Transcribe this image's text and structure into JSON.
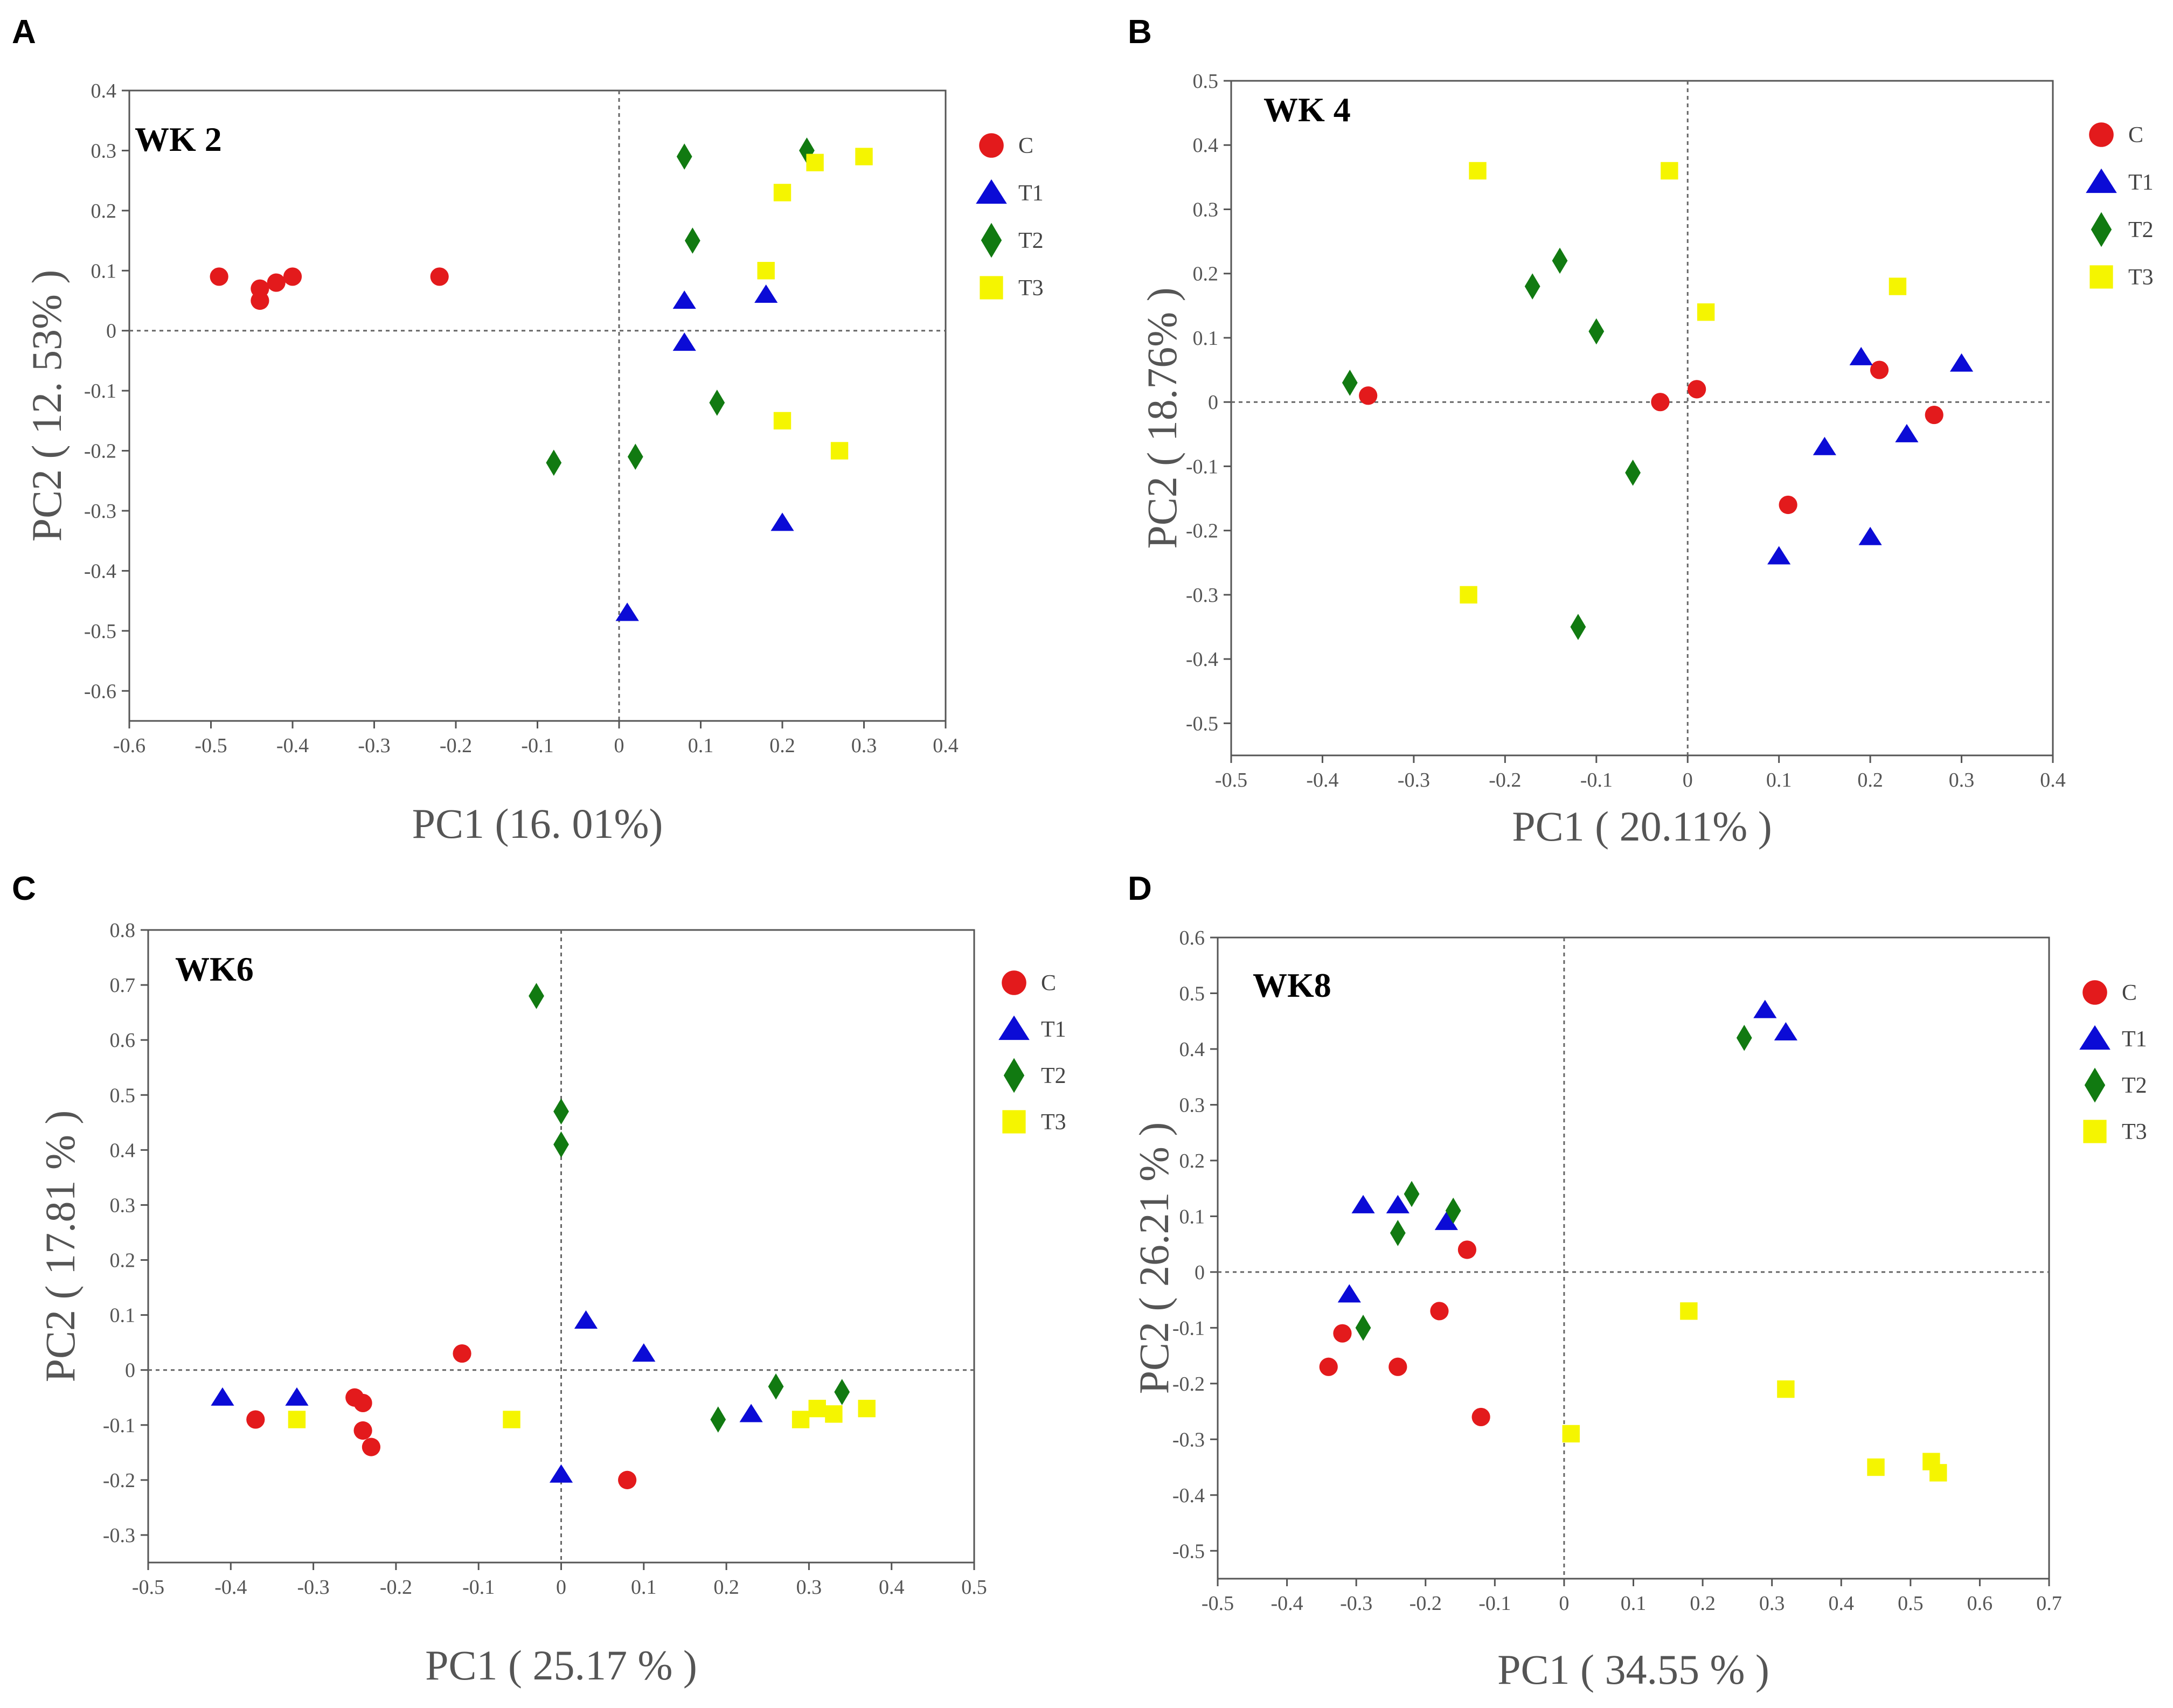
{
  "colors": {
    "C": "#e31a1c",
    "T1": "#0b0bd6",
    "T2": "#117a11",
    "T3": "#f5f500",
    "axis": "#555555",
    "refline": "#666666"
  },
  "chart_data": [
    {
      "type": "scatter",
      "panel": "A",
      "title": "WK 2",
      "xlabel": "PC1 (16. 01%)",
      "ylabel": "PC2 ( 12. 53% )",
      "xlim": [
        -0.6,
        0.4
      ],
      "ylim": [
        -0.65,
        0.4
      ],
      "xticks": [
        -0.6,
        -0.5,
        -0.4,
        -0.3,
        -0.2,
        -0.1,
        0,
        0.1,
        0.2,
        0.3,
        0.4
      ],
      "yticks": [
        -0.6,
        -0.5,
        -0.4,
        -0.3,
        -0.2,
        -0.1,
        0,
        0.1,
        0.2,
        0.3,
        0.4
      ],
      "xtick_labels": [
        "-0.6",
        "-0.5",
        "-0.4",
        "-0.3",
        "-0.2",
        "-0.1",
        "0",
        "0.1",
        "0.2",
        "0.3",
        "0.4"
      ],
      "ytick_labels": [
        "-0.6",
        "-0.5",
        "-0.4",
        "-0.3",
        "-0.2",
        "-0.1",
        "0",
        "0.1",
        "0.2",
        "0.3",
        "0.4"
      ],
      "series": [
        {
          "name": "C",
          "marker": "circle",
          "points": [
            [
              -0.49,
              0.09
            ],
            [
              -0.44,
              0.07
            ],
            [
              -0.44,
              0.05
            ],
            [
              -0.42,
              0.08
            ],
            [
              -0.4,
              0.09
            ],
            [
              -0.22,
              0.09
            ]
          ]
        },
        {
          "name": "T1",
          "marker": "triangle",
          "points": [
            [
              0.08,
              0.05
            ],
            [
              0.18,
              0.06
            ],
            [
              0.08,
              -0.02
            ],
            [
              0.2,
              -0.32
            ],
            [
              0.01,
              -0.47
            ],
            [
              0.01,
              -0.47
            ]
          ]
        },
        {
          "name": "T2",
          "marker": "diamond",
          "points": [
            [
              0.08,
              0.29
            ],
            [
              0.23,
              0.3
            ],
            [
              0.09,
              0.15
            ],
            [
              0.12,
              -0.12
            ],
            [
              -0.08,
              -0.22
            ],
            [
              0.02,
              -0.21
            ]
          ]
        },
        {
          "name": "T3",
          "marker": "square",
          "points": [
            [
              0.3,
              0.29
            ],
            [
              0.24,
              0.28
            ],
            [
              0.2,
              0.23
            ],
            [
              0.18,
              0.1
            ],
            [
              0.2,
              -0.15
            ],
            [
              0.27,
              -0.2
            ]
          ]
        }
      ]
    },
    {
      "type": "scatter",
      "panel": "B",
      "title": "WK 4",
      "xlabel": "PC1 ( 20.11% )",
      "ylabel": "PC2 ( 18.76% )",
      "xlim": [
        -0.5,
        0.4
      ],
      "ylim": [
        -0.55,
        0.5
      ],
      "xticks": [
        -0.5,
        -0.4,
        -0.3,
        -0.2,
        -0.1,
        0,
        0.1,
        0.2,
        0.3,
        0.4
      ],
      "yticks": [
        -0.5,
        -0.4,
        -0.3,
        -0.2,
        -0.1,
        0,
        0.1,
        0.2,
        0.3,
        0.4,
        0.5
      ],
      "xtick_labels": [
        "-0.5",
        "-0.4",
        "-0.3",
        "-0.2",
        "-0.1",
        "0",
        "0.1",
        "0.2",
        "0.3",
        "0.4"
      ],
      "ytick_labels": [
        "-0.5",
        "-0.4",
        "-0.3",
        "-0.2",
        "-0.1",
        "0",
        "0.1",
        "0.2",
        "0.3",
        "0.4",
        "0.5"
      ],
      "series": [
        {
          "name": "C",
          "marker": "circle",
          "points": [
            [
              -0.35,
              0.01
            ],
            [
              -0.03,
              0.0
            ],
            [
              0.01,
              0.02
            ],
            [
              0.21,
              0.05
            ],
            [
              0.27,
              -0.02
            ],
            [
              0.11,
              -0.16
            ]
          ]
        },
        {
          "name": "T1",
          "marker": "triangle",
          "points": [
            [
              0.19,
              0.07
            ],
            [
              0.3,
              0.06
            ],
            [
              0.24,
              -0.05
            ],
            [
              0.15,
              -0.07
            ],
            [
              0.2,
              -0.21
            ],
            [
              0.1,
              -0.24
            ]
          ]
        },
        {
          "name": "T2",
          "marker": "diamond",
          "points": [
            [
              -0.37,
              0.03
            ],
            [
              -0.17,
              0.18
            ],
            [
              -0.14,
              0.22
            ],
            [
              -0.1,
              0.11
            ],
            [
              -0.06,
              -0.11
            ],
            [
              -0.12,
              -0.35
            ]
          ]
        },
        {
          "name": "T3",
          "marker": "square",
          "points": [
            [
              -0.23,
              0.36
            ],
            [
              -0.02,
              0.36
            ],
            [
              0.02,
              0.14
            ],
            [
              0.23,
              0.18
            ],
            [
              -0.24,
              -0.3
            ]
          ]
        }
      ]
    },
    {
      "type": "scatter",
      "panel": "C",
      "title": "WK6",
      "xlabel": "PC1 ( 25.17 % )",
      "ylabel": "PC2 ( 17.81 % )",
      "xlim": [
        -0.5,
        0.5
      ],
      "ylim": [
        -0.35,
        0.8
      ],
      "xticks": [
        -0.5,
        -0.4,
        -0.3,
        -0.2,
        -0.1,
        0,
        0.1,
        0.2,
        0.3,
        0.4,
        0.5
      ],
      "yticks": [
        -0.3,
        -0.2,
        -0.1,
        0,
        0.1,
        0.2,
        0.3,
        0.4,
        0.5,
        0.6,
        0.7,
        0.8
      ],
      "xtick_labels": [
        "-0.5",
        "-0.4",
        "-0.3",
        "-0.2",
        "-0.1",
        "0",
        "0.1",
        "0.2",
        "0.3",
        "0.4",
        "0.5"
      ],
      "ytick_labels": [
        "-0.3",
        "-0.2",
        "-0.1",
        "0",
        "0.1",
        "0.2",
        "0.3",
        "0.4",
        "0.5",
        "0.6",
        "0.7",
        "0.8"
      ],
      "series": [
        {
          "name": "C",
          "marker": "circle",
          "points": [
            [
              -0.37,
              -0.09
            ],
            [
              -0.25,
              -0.05
            ],
            [
              -0.24,
              -0.06
            ],
            [
              -0.24,
              -0.11
            ],
            [
              -0.23,
              -0.14
            ],
            [
              -0.12,
              0.03
            ],
            [
              0.08,
              -0.2
            ]
          ]
        },
        {
          "name": "T1",
          "marker": "triangle",
          "points": [
            [
              -0.41,
              -0.05
            ],
            [
              -0.32,
              -0.05
            ],
            [
              0.03,
              0.09
            ],
            [
              0.1,
              0.03
            ],
            [
              0.0,
              -0.19
            ],
            [
              0.23,
              -0.08
            ]
          ]
        },
        {
          "name": "T2",
          "marker": "diamond",
          "points": [
            [
              -0.03,
              0.68
            ],
            [
              0.0,
              0.47
            ],
            [
              0.0,
              0.41
            ],
            [
              0.19,
              -0.09
            ],
            [
              0.26,
              -0.03
            ],
            [
              0.34,
              -0.04
            ]
          ]
        },
        {
          "name": "T3",
          "marker": "square",
          "points": [
            [
              -0.32,
              -0.09
            ],
            [
              -0.06,
              -0.09
            ],
            [
              0.29,
              -0.09
            ],
            [
              0.31,
              -0.07
            ],
            [
              0.33,
              -0.08
            ],
            [
              0.37,
              -0.07
            ]
          ]
        }
      ]
    },
    {
      "type": "scatter",
      "panel": "D",
      "title": "WK8",
      "xlabel": "PC1 ( 34.55 % )",
      "ylabel": "PC2 ( 26.21 % )",
      "xlim": [
        -0.5,
        0.7
      ],
      "ylim": [
        -0.55,
        0.6
      ],
      "xticks": [
        -0.5,
        -0.4,
        -0.3,
        -0.2,
        -0.1,
        0,
        0.1,
        0.2,
        0.3,
        0.4,
        0.5,
        0.6,
        0.7
      ],
      "yticks": [
        -0.5,
        -0.4,
        -0.3,
        -0.2,
        -0.1,
        0,
        0.1,
        0.2,
        0.3,
        0.4,
        0.5,
        0.6
      ],
      "xtick_labels": [
        "-0.5",
        "-0.4",
        "-0.3",
        "-0.2",
        "-0.1",
        "0",
        "0.1",
        "0.2",
        "0.3",
        "0.4",
        "0.5",
        "0.6",
        "0.7"
      ],
      "ytick_labels": [
        "-0.5",
        "-0.4",
        "-0.3",
        "-0.2",
        "-0.1",
        "0",
        "0.1",
        "0.2",
        "0.3",
        "0.4",
        "0.5",
        "0.6"
      ],
      "series": [
        {
          "name": "C",
          "marker": "circle",
          "points": [
            [
              -0.14,
              0.04
            ],
            [
              -0.18,
              -0.07
            ],
            [
              -0.32,
              -0.11
            ],
            [
              -0.34,
              -0.17
            ],
            [
              -0.24,
              -0.17
            ],
            [
              -0.12,
              -0.26
            ]
          ]
        },
        {
          "name": "T1",
          "marker": "triangle",
          "points": [
            [
              0.29,
              0.47
            ],
            [
              0.32,
              0.43
            ],
            [
              -0.29,
              0.12
            ],
            [
              -0.24,
              0.12
            ],
            [
              -0.17,
              0.09
            ],
            [
              -0.31,
              -0.04
            ]
          ]
        },
        {
          "name": "T2",
          "marker": "diamond",
          "points": [
            [
              0.26,
              0.42
            ],
            [
              -0.22,
              0.14
            ],
            [
              -0.16,
              0.11
            ],
            [
              -0.24,
              0.07
            ],
            [
              -0.29,
              -0.1
            ]
          ]
        },
        {
          "name": "T3",
          "marker": "square",
          "points": [
            [
              0.18,
              -0.07
            ],
            [
              0.32,
              -0.21
            ],
            [
              0.01,
              -0.29
            ],
            [
              0.45,
              -0.35
            ],
            [
              0.53,
              -0.34
            ],
            [
              0.54,
              -0.36
            ]
          ]
        }
      ]
    }
  ]
}
